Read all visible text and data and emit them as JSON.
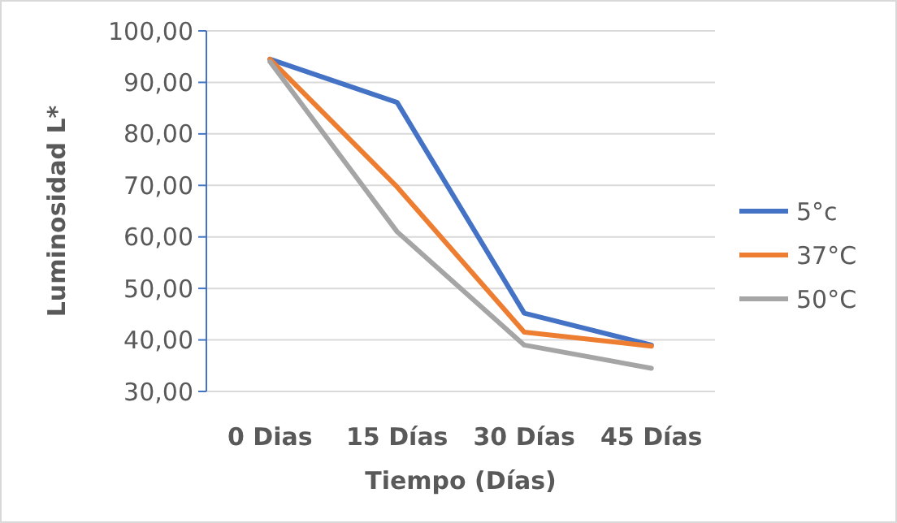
{
  "chart_data": {
    "type": "line",
    "xlabel": "Tiempo (Días)",
    "ylabel": "Luminosidad L*",
    "categories": [
      "0 Dias",
      "15 Días",
      "30 Días",
      "45 Días"
    ],
    "series": [
      {
        "name": "5°c",
        "color": "#4472c4",
        "values": [
          94.5,
          86.1,
          45.2,
          39
        ]
      },
      {
        "name": "37°C",
        "color": "#ed7d31",
        "values": [
          94.5,
          69.7,
          41.5,
          38.8
        ]
      },
      {
        "name": "50°C",
        "color": "#a5a5a5",
        "values": [
          94,
          61,
          39,
          34.5
        ]
      }
    ],
    "ylim": [
      30,
      100
    ],
    "yticks": [
      {
        "value": 30,
        "label": "30,00"
      },
      {
        "value": 40,
        "label": "40,00"
      },
      {
        "value": 50,
        "label": "50,00"
      },
      {
        "value": 60,
        "label": "60,00"
      },
      {
        "value": 70,
        "label": "70,00"
      },
      {
        "value": 80,
        "label": "80,00"
      },
      {
        "value": 90,
        "label": "90,00"
      },
      {
        "value": 100,
        "label": "100,00"
      }
    ],
    "grid": "y",
    "legend": "right",
    "marker": "none",
    "line_style": "solid"
  }
}
